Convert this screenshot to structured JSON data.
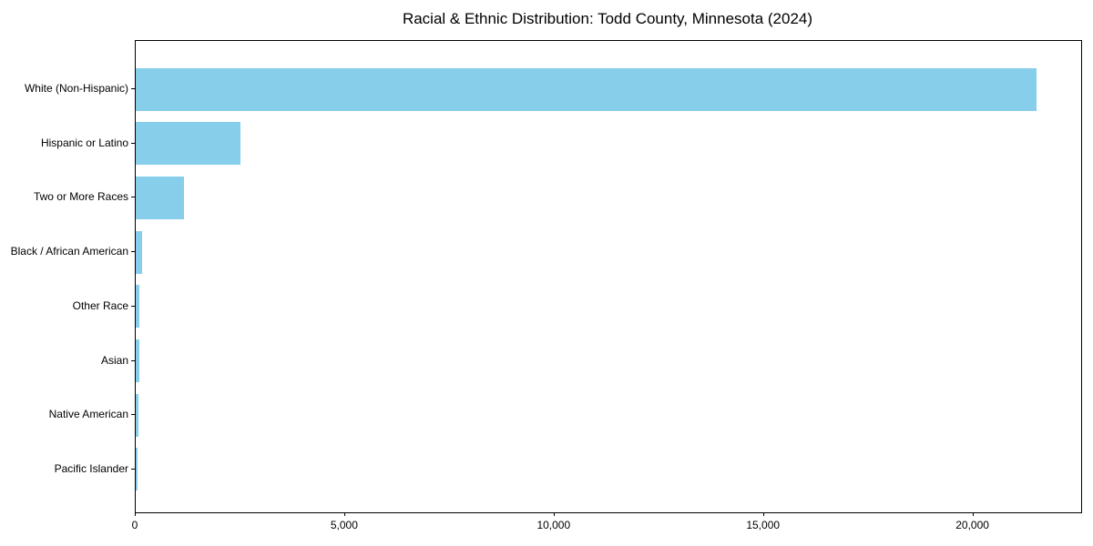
{
  "chart_data": {
    "type": "bar",
    "orientation": "horizontal",
    "title": "Racial & Ethnic Distribution: Todd County, Minnesota (2024)",
    "categories": [
      "White (Non-Hispanic)",
      "Hispanic or Latino",
      "Two or More Races",
      "Black / African American",
      "Other Race",
      "Asian",
      "Native American",
      "Pacific Islander"
    ],
    "values": [
      21500,
      2500,
      1150,
      150,
      90,
      85,
      65,
      45
    ],
    "xlabel": "",
    "ylabel": "",
    "xlim": [
      0,
      22575
    ],
    "xticks": [
      0,
      5000,
      10000,
      15000,
      20000
    ],
    "xtick_labels": [
      "0",
      "5,000",
      "10,000",
      "15,000",
      "20,000"
    ],
    "bar_color": "#87CEEB",
    "text_color": "#000000",
    "grid": false,
    "legend": null
  }
}
